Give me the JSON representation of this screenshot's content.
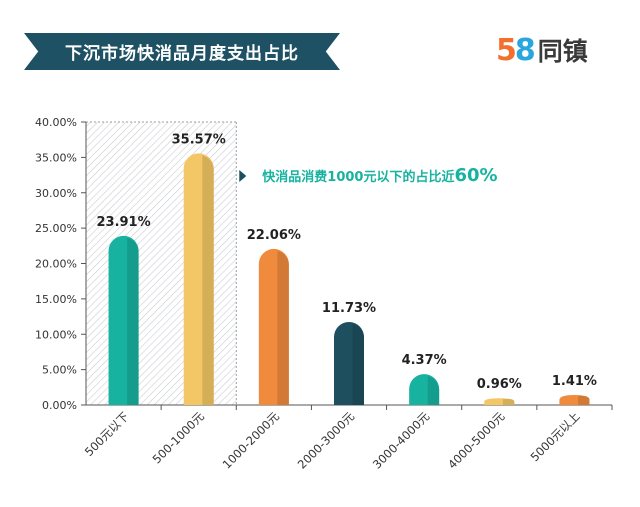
{
  "title": "下沉市场快消品月度支出占比",
  "logo": {
    "number_5": "5",
    "number_8": "8",
    "text": "同镇"
  },
  "colors": {
    "title_bg": "#1e5163",
    "axis": "#555555"
  },
  "chart_data": {
    "type": "bar",
    "categories": [
      "500元以下",
      "500-1000元",
      "1000-2000元",
      "2000-3000元",
      "3000-4000元",
      "4000-5000元",
      "5000元以上"
    ],
    "values": [
      23.91,
      35.57,
      22.06,
      11.73,
      4.37,
      0.96,
      1.41
    ],
    "value_labels": [
      "23.91%",
      "35.57%",
      "22.06%",
      "11.73%",
      "4.37%",
      "0.96%",
      "1.41%"
    ],
    "bar_colors": [
      "#17b3a0",
      "#f3c765",
      "#f08a3c",
      "#1e4f5f",
      "#17b3a0",
      "#f3c765",
      "#f08a3c"
    ],
    "yticks": [
      "0.00%",
      "5.00%",
      "10.00%",
      "15.00%",
      "20.00%",
      "25.00%",
      "30.00%",
      "35.00%",
      "40.00%"
    ],
    "ylim": [
      0,
      40
    ],
    "annotation": {
      "text": "快消品消费1000元以下的占比近",
      "highlight": "60%",
      "color": "#17b3a0"
    },
    "highlight_region": [
      "500元以下",
      "500-1000元"
    ]
  }
}
